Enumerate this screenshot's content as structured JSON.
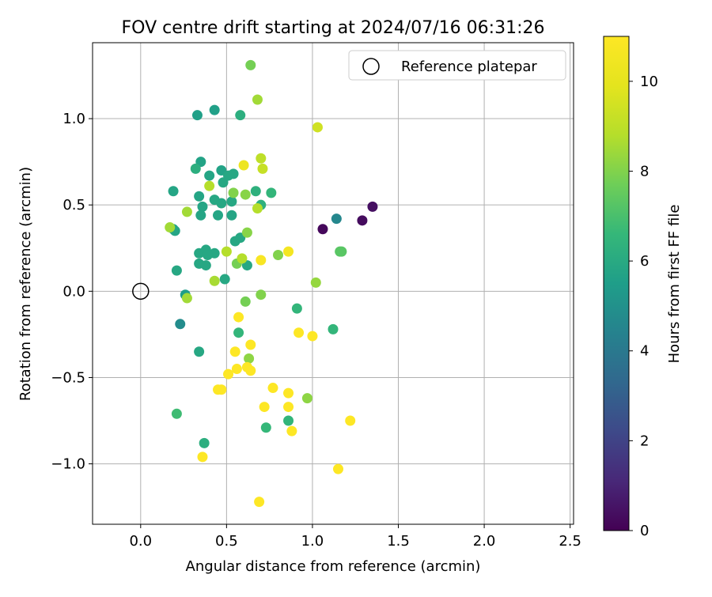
{
  "chart_data": {
    "type": "scatter",
    "title": "FOV centre drift starting at 2024/07/16 06:31:26",
    "xlabel": "Angular distance from reference (arcmin)",
    "ylabel": "Rotation from reference (arcmin)",
    "xlim": [
      -0.28,
      2.52
    ],
    "ylim": [
      -1.35,
      1.44
    ],
    "xticks": [
      0.0,
      0.5,
      1.0,
      1.5,
      2.0,
      2.5
    ],
    "xtick_labels": [
      "0.0",
      "0.5",
      "1.0",
      "1.5",
      "2.0",
      "2.5"
    ],
    "yticks": [
      -1.0,
      -0.5,
      0.0,
      0.5,
      1.0
    ],
    "ytick_labels": [
      "−1.0",
      "−0.5",
      "0.0",
      "0.5",
      "1.0"
    ],
    "grid": true,
    "legend": {
      "placement": "top-right",
      "entries": [
        "Reference platepar"
      ]
    },
    "reference_point": {
      "x": 0.0,
      "y": 0.0
    },
    "colorbar": {
      "label": "Hours from first FF file",
      "colormap": "viridis",
      "range": [
        0,
        11
      ],
      "ticks": [
        0,
        2,
        4,
        6,
        8,
        10
      ],
      "tick_labels": [
        "0",
        "2",
        "4",
        "6",
        "8",
        "10"
      ]
    },
    "points": [
      {
        "x": 1.06,
        "y": 0.36,
        "c": 0.2
      },
      {
        "x": 1.29,
        "y": 0.41,
        "c": 0.3
      },
      {
        "x": 1.35,
        "y": 0.49,
        "c": 0.4
      },
      {
        "x": 1.14,
        "y": 0.42,
        "c": 4.6
      },
      {
        "x": 0.23,
        "y": -0.19,
        "c": 4.8
      },
      {
        "x": 0.26,
        "y": -0.02,
        "c": 5.5
      },
      {
        "x": 0.43,
        "y": 1.05,
        "c": 5.6
      },
      {
        "x": 0.33,
        "y": 1.02,
        "c": 5.6
      },
      {
        "x": 0.47,
        "y": 0.7,
        "c": 5.7
      },
      {
        "x": 0.35,
        "y": 0.75,
        "c": 5.7
      },
      {
        "x": 0.4,
        "y": 0.67,
        "c": 5.8
      },
      {
        "x": 0.19,
        "y": 0.58,
        "c": 5.8
      },
      {
        "x": 0.34,
        "y": 0.55,
        "c": 5.8
      },
      {
        "x": 0.36,
        "y": 0.49,
        "c": 5.8
      },
      {
        "x": 0.35,
        "y": 0.44,
        "c": 5.8
      },
      {
        "x": 0.19,
        "y": 0.36,
        "c": 5.8
      },
      {
        "x": 0.2,
        "y": 0.35,
        "c": 5.8
      },
      {
        "x": 0.45,
        "y": 0.44,
        "c": 5.8
      },
      {
        "x": 0.53,
        "y": 0.44,
        "c": 5.8
      },
      {
        "x": 0.43,
        "y": 0.53,
        "c": 5.9
      },
      {
        "x": 0.47,
        "y": 0.51,
        "c": 5.9
      },
      {
        "x": 0.53,
        "y": 0.52,
        "c": 5.9
      },
      {
        "x": 0.54,
        "y": 0.68,
        "c": 5.9
      },
      {
        "x": 0.48,
        "y": 0.63,
        "c": 5.9
      },
      {
        "x": 0.51,
        "y": 0.67,
        "c": 5.9
      },
      {
        "x": 0.34,
        "y": 0.22,
        "c": 5.9
      },
      {
        "x": 0.38,
        "y": 0.24,
        "c": 5.9
      },
      {
        "x": 0.43,
        "y": 0.22,
        "c": 5.9
      },
      {
        "x": 0.39,
        "y": 0.21,
        "c": 5.9
      },
      {
        "x": 0.34,
        "y": 0.16,
        "c": 5.9
      },
      {
        "x": 0.38,
        "y": 0.15,
        "c": 5.9
      },
      {
        "x": 0.21,
        "y": 0.12,
        "c": 5.9
      },
      {
        "x": 0.49,
        "y": 0.07,
        "c": 5.9
      },
      {
        "x": 0.55,
        "y": 0.29,
        "c": 5.9
      },
      {
        "x": 0.58,
        "y": 0.31,
        "c": 5.9
      },
      {
        "x": 0.62,
        "y": 0.15,
        "c": 5.9
      },
      {
        "x": 0.34,
        "y": -0.35,
        "c": 5.9
      },
      {
        "x": 0.37,
        "y": -0.88,
        "c": 6.2
      },
      {
        "x": 0.58,
        "y": 1.02,
        "c": 6.2
      },
      {
        "x": 0.32,
        "y": 0.71,
        "c": 6.2
      },
      {
        "x": 0.67,
        "y": 0.58,
        "c": 6.3
      },
      {
        "x": 0.7,
        "y": 0.5,
        "c": 6.3
      },
      {
        "x": 0.76,
        "y": 0.57,
        "c": 6.5
      },
      {
        "x": 0.57,
        "y": -0.24,
        "c": 6.5
      },
      {
        "x": 0.91,
        "y": -0.1,
        "c": 6.5
      },
      {
        "x": 1.12,
        "y": -0.22,
        "c": 6.5
      },
      {
        "x": 0.86,
        "y": -0.75,
        "c": 6.5
      },
      {
        "x": 0.73,
        "y": -0.79,
        "c": 6.6
      },
      {
        "x": 0.21,
        "y": -0.71,
        "c": 6.8
      },
      {
        "x": 1.17,
        "y": 0.23,
        "c": 7.3
      },
      {
        "x": 1.16,
        "y": 0.23,
        "c": 7.3
      },
      {
        "x": 0.64,
        "y": 1.31,
        "c": 7.8
      },
      {
        "x": 0.56,
        "y": 0.16,
        "c": 7.8
      },
      {
        "x": 0.61,
        "y": -0.06,
        "c": 7.8
      },
      {
        "x": 0.7,
        "y": -0.02,
        "c": 8.0
      },
      {
        "x": 0.8,
        "y": 0.21,
        "c": 8.0
      },
      {
        "x": 0.54,
        "y": 0.57,
        "c": 8.0
      },
      {
        "x": 0.61,
        "y": 0.56,
        "c": 8.1
      },
      {
        "x": 0.62,
        "y": 0.34,
        "c": 8.1
      },
      {
        "x": 0.63,
        "y": -0.39,
        "c": 8.2
      },
      {
        "x": 0.97,
        "y": -0.62,
        "c": 8.2
      },
      {
        "x": 1.02,
        "y": 0.05,
        "c": 8.3
      },
      {
        "x": 0.68,
        "y": 1.11,
        "c": 8.5
      },
      {
        "x": 0.27,
        "y": 0.46,
        "c": 8.5
      },
      {
        "x": 0.17,
        "y": 0.37,
        "c": 8.5
      },
      {
        "x": 0.27,
        "y": -0.04,
        "c": 8.5
      },
      {
        "x": 0.43,
        "y": 0.06,
        "c": 8.6
      },
      {
        "x": 0.5,
        "y": 0.23,
        "c": 8.8
      },
      {
        "x": 0.59,
        "y": 0.19,
        "c": 8.8
      },
      {
        "x": 0.68,
        "y": 0.48,
        "c": 8.8
      },
      {
        "x": 0.4,
        "y": 0.61,
        "c": 8.8
      },
      {
        "x": 0.7,
        "y": 0.77,
        "c": 9.0
      },
      {
        "x": 0.71,
        "y": 0.71,
        "c": 9.2
      },
      {
        "x": 1.03,
        "y": 0.95,
        "c": 9.4
      },
      {
        "x": 0.6,
        "y": 0.73,
        "c": 10.3
      },
      {
        "x": 0.86,
        "y": 0.23,
        "c": 10.6
      },
      {
        "x": 0.7,
        "y": 0.18,
        "c": 10.8
      },
      {
        "x": 0.57,
        "y": -0.15,
        "c": 11.0
      },
      {
        "x": 0.92,
        "y": -0.24,
        "c": 11.0
      },
      {
        "x": 1.0,
        "y": -0.26,
        "c": 11.0
      },
      {
        "x": 0.64,
        "y": -0.31,
        "c": 11.0
      },
      {
        "x": 0.55,
        "y": -0.35,
        "c": 11.0
      },
      {
        "x": 0.51,
        "y": -0.48,
        "c": 11.0
      },
      {
        "x": 0.56,
        "y": -0.45,
        "c": 11.0
      },
      {
        "x": 0.62,
        "y": -0.44,
        "c": 11.0
      },
      {
        "x": 0.64,
        "y": -0.46,
        "c": 11.0
      },
      {
        "x": 0.45,
        "y": -0.57,
        "c": 11.0
      },
      {
        "x": 0.47,
        "y": -0.57,
        "c": 11.0
      },
      {
        "x": 0.77,
        "y": -0.56,
        "c": 11.0
      },
      {
        "x": 0.86,
        "y": -0.59,
        "c": 11.0
      },
      {
        "x": 0.72,
        "y": -0.67,
        "c": 11.0
      },
      {
        "x": 0.86,
        "y": -0.67,
        "c": 11.0
      },
      {
        "x": 0.88,
        "y": -0.81,
        "c": 11.0
      },
      {
        "x": 1.22,
        "y": -0.75,
        "c": 11.0
      },
      {
        "x": 0.36,
        "y": -0.96,
        "c": 11.0
      },
      {
        "x": 1.15,
        "y": -1.03,
        "c": 11.0
      },
      {
        "x": 0.69,
        "y": -1.22,
        "c": 11.0
      }
    ]
  }
}
